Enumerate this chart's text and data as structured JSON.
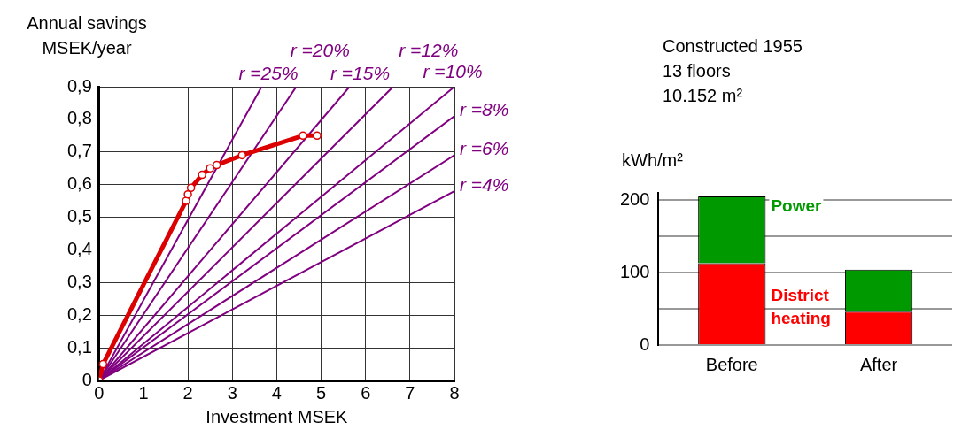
{
  "chart_data": [
    {
      "type": "line",
      "xlabel": "Investment MSEK",
      "ylabel": "Annual savings\nMSEK/year",
      "xlim": [
        0,
        8
      ],
      "ylim": [
        0,
        0.9
      ],
      "xticks": [
        0,
        1,
        2,
        3,
        4,
        5,
        6,
        7,
        8
      ],
      "yticks": [
        0,
        {
          "value": 0.1,
          "label": "0,1"
        },
        {
          "value": 0.2,
          "label": "0,2"
        },
        {
          "value": 0.3,
          "label": "0,3"
        },
        {
          "value": 0.4,
          "label": "0,4"
        },
        {
          "value": 0.5,
          "label": "0,5"
        },
        {
          "value": 0.6,
          "label": "0,6"
        },
        {
          "value": 0.7,
          "label": "0,7"
        },
        {
          "value": 0.8,
          "label": "0,8"
        },
        {
          "value": 0.9,
          "label": "0,9"
        }
      ],
      "grid": true,
      "series": [
        {
          "name": "r =4%",
          "color": "#800080",
          "marker": "none",
          "x": [
            0,
            8
          ],
          "values": [
            0,
            0.58
          ]
        },
        {
          "name": "r =6%",
          "color": "#800080",
          "marker": "none",
          "x": [
            0,
            8
          ],
          "values": [
            0,
            0.69
          ]
        },
        {
          "name": "r =8%",
          "color": "#800080",
          "marker": "none",
          "x": [
            0,
            8
          ],
          "values": [
            0,
            0.81
          ]
        },
        {
          "name": "r =10%",
          "color": "#800080",
          "marker": "none",
          "x": [
            0,
            8
          ],
          "values": [
            0,
            0.9
          ]
        },
        {
          "name": "r =12%",
          "color": "#800080",
          "marker": "none",
          "x": [
            0,
            6.62
          ],
          "values": [
            0,
            0.9
          ]
        },
        {
          "name": "r =15%",
          "color": "#800080",
          "marker": "none",
          "x": [
            0,
            5.64
          ],
          "values": [
            0,
            0.9
          ]
        },
        {
          "name": "r =20%",
          "color": "#800080",
          "marker": "none",
          "x": [
            0,
            4.44
          ],
          "values": [
            0,
            0.9
          ]
        },
        {
          "name": "r =25%",
          "color": "#800080",
          "marker": "none",
          "x": [
            0,
            3.66
          ],
          "values": [
            0,
            0.9
          ]
        },
        {
          "color": "#dd0000",
          "marker": "circle",
          "x": [
            0,
            0.09,
            1.96,
            2.0,
            2.07,
            2.32,
            2.5,
            2.65,
            3.22,
            4.59,
            4.91
          ],
          "values": [
            0,
            0.05,
            0.55,
            0.57,
            0.59,
            0.63,
            0.65,
            0.66,
            0.69,
            0.75,
            0.75
          ]
        }
      ]
    },
    {
      "type": "bar",
      "stacked": true,
      "ylabel": "kWh/m²",
      "categories": [
        "Before",
        "After"
      ],
      "ylim": [
        0,
        210
      ],
      "yticks": [
        0,
        {
          "value": 50,
          "label": null
        },
        100,
        {
          "value": 150,
          "label": null
        },
        200
      ],
      "grid": "y",
      "series": [
        {
          "name": "District heating",
          "color": "#ff0000",
          "values": [
            113,
            46
          ]
        },
        {
          "name": "Power",
          "color": "#009900",
          "values": [
            92,
            58
          ]
        }
      ]
    },
    {
      "type": "other",
      "annotations": [
        "Constructed 1955",
        "13 floors",
        "10.152 m²"
      ]
    }
  ]
}
